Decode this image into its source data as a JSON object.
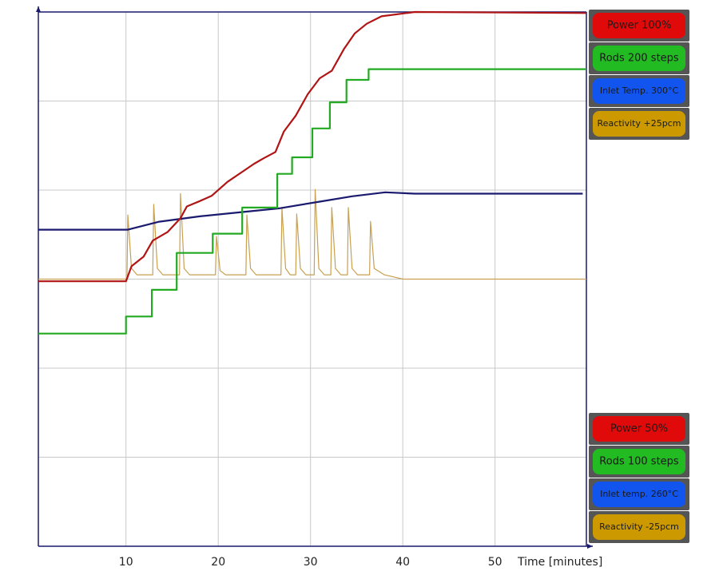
{
  "chart_data": {
    "type": "line",
    "xlabel": "Time [minutes]",
    "xlim": [
      0.5,
      59.9
    ],
    "xticks": [
      10,
      20,
      30,
      40,
      50
    ],
    "ylim": [
      50,
      100
    ],
    "yticks": [
      50,
      58.33,
      66.67,
      75,
      83.33,
      91.67,
      100
    ],
    "grid": true,
    "legend_top": [
      "Power   100%",
      "Rods 200 steps",
      "Inlet Temp. 300°C",
      "Reactivity +25pcm"
    ],
    "legend_bottom": [
      "Power    50%",
      "Rods 100 steps",
      "Inlet temp. 260°C",
      "Reactivity -25pcm"
    ],
    "series": [
      {
        "name": "Power",
        "color": "#b01414",
        "legend_color": "#e00a0a",
        "x": [
          0.5,
          10,
          10.6,
          11.9,
          12.9,
          14.5,
          15.9,
          16.6,
          18,
          19.3,
          21,
          22.7,
          23.9,
          24.9,
          26.2,
          27.1,
          28.4,
          29.7,
          31,
          32.3,
          33.6,
          34.8,
          36.1,
          37.7,
          41.3,
          59.9
        ],
        "values": [
          74.8,
          74.8,
          76.2,
          77.1,
          78.6,
          79.4,
          80.7,
          81.8,
          82.3,
          82.8,
          84.1,
          85.1,
          85.8,
          86.3,
          86.9,
          88.8,
          90.3,
          92.3,
          93.8,
          94.5,
          96.5,
          98,
          98.9,
          99.6,
          100,
          99.9
        ]
      },
      {
        "name": "Rods",
        "color": "#22aa22",
        "legend_color": "#22bb22",
        "ylim": [
          100,
          200
        ],
        "x": [
          0.5,
          10,
          10,
          12.8,
          12.8,
          15.5,
          15.5,
          19.4,
          19.4,
          22.6,
          22.6,
          26.4,
          26.4,
          28,
          28,
          30.2,
          30.2,
          32.1,
          32.1,
          33.9,
          33.9,
          36.3,
          36.3,
          59.9
        ],
        "values": [
          139.8,
          139.8,
          143,
          143,
          148,
          148,
          154.9,
          154.9,
          158.5,
          158.5,
          163.4,
          163.4,
          169.7,
          169.7,
          172.8,
          172.8,
          178.2,
          178.2,
          183.1,
          183.1,
          187.3,
          187.3,
          189.3,
          189.3
        ]
      },
      {
        "name": "Inlet Temp.",
        "color": "#1a1a6e",
        "legend_color": "#1155ee",
        "ylim": [
          260,
          300
        ],
        "x": [
          0.5,
          10.2,
          13.6,
          18,
          22.3,
          26.6,
          31,
          34.5,
          38.1,
          41.3,
          59.5
        ],
        "values": [
          283.7,
          283.7,
          284.3,
          284.7,
          285,
          285.3,
          285.8,
          286.2,
          286.5,
          286.4,
          286.4
        ]
      },
      {
        "name": "Reactivity",
        "color": "#c8a050",
        "legend_color": "#cc9900",
        "ylim": [
          -25,
          25
        ],
        "x": [
          0.5,
          10.1,
          10.2,
          10.6,
          11.2,
          12.9,
          13,
          13.4,
          14,
          15.8,
          15.9,
          16.3,
          16.9,
          19.7,
          19.8,
          20.2,
          20.8,
          23,
          23.1,
          23.5,
          24.1,
          26.8,
          26.9,
          27.3,
          27.8,
          28.4,
          28.5,
          28.9,
          29.5,
          30.4,
          30.5,
          30.9,
          31.5,
          32.2,
          32.3,
          32.7,
          33.3,
          34,
          34.1,
          34.5,
          35.1,
          36.4,
          36.5,
          36.9,
          38,
          40,
          59.9
        ],
        "values": [
          0,
          0,
          6,
          1,
          0.4,
          0.4,
          7,
          1,
          0.4,
          0.4,
          8,
          1,
          0.4,
          0.4,
          4,
          0.8,
          0.4,
          0.4,
          6,
          1,
          0.4,
          0.4,
          6.7,
          1,
          0.4,
          0.4,
          6.1,
          1,
          0.4,
          0.4,
          8.4,
          1,
          0.4,
          0.4,
          6.7,
          1,
          0.4,
          0.4,
          6.7,
          1,
          0.4,
          0.4,
          5.4,
          1,
          0.4,
          0,
          0
        ]
      }
    ]
  }
}
